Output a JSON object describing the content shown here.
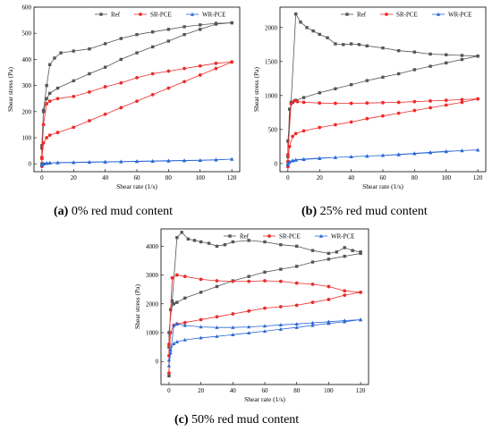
{
  "colors": {
    "ref": "#555555",
    "sr": "#ef2b2b",
    "wr": "#2a68d6"
  },
  "panels": [
    {
      "caption_letter": "(a)",
      "caption_text": "0% red mud content",
      "legend": [
        "Ref",
        "SR-PCE",
        "WR-PCE"
      ],
      "chart_data": {
        "type": "line",
        "xlabel": "Shear rate (1/s)",
        "ylabel": "Shear stress (Pa)",
        "xlim": [
          -5,
          125
        ],
        "ylim": [
          -30,
          600
        ],
        "xticks": [
          0,
          20,
          40,
          60,
          80,
          100,
          120
        ],
        "yticks": [
          0,
          100,
          200,
          300,
          400,
          500,
          600
        ],
        "series": [
          {
            "name": "Ref",
            "marker": "square",
            "x": [
              0,
              0,
              1,
              3,
              5,
              8,
              12,
              20,
              30,
              40,
              50,
              60,
              70,
              80,
              90,
              100,
              110,
              120,
              120,
              110,
              100,
              90,
              80,
              70,
              60,
              50,
              40,
              30,
              20,
              10,
              5,
              3,
              1,
              0
            ],
            "y": [
              0,
              70,
              205,
              300,
              380,
              405,
              425,
              432,
              440,
              460,
              480,
              495,
              505,
              515,
              525,
              532,
              538,
              540,
              540,
              535,
              515,
              495,
              470,
              448,
              425,
              400,
              370,
              345,
              318,
              290,
              270,
              250,
              200,
              60
            ]
          },
          {
            "name": "SR-PCE",
            "marker": "circle",
            "x": [
              0,
              0,
              1,
              3,
              5,
              10,
              20,
              30,
              40,
              50,
              60,
              70,
              80,
              90,
              100,
              110,
              120,
              120,
              110,
              100,
              90,
              80,
              70,
              60,
              50,
              40,
              30,
              20,
              10,
              5,
              3,
              1,
              0
            ],
            "y": [
              -10,
              25,
              150,
              230,
              240,
              250,
              258,
              275,
              295,
              310,
              330,
              345,
              355,
              365,
              375,
              385,
              390,
              390,
              365,
              340,
              315,
              290,
              265,
              240,
              215,
              190,
              165,
              140,
              120,
              110,
              100,
              80,
              20
            ]
          },
          {
            "name": "WR-PCE",
            "marker": "triangle",
            "x": [
              0,
              1,
              3,
              5,
              10,
              20,
              30,
              40,
              50,
              60,
              70,
              80,
              90,
              100,
              110,
              120,
              120,
              110,
              100,
              90,
              80,
              70,
              60,
              50,
              40,
              30,
              20,
              10,
              5,
              3,
              1,
              0
            ],
            "y": [
              -5,
              0,
              2,
              3,
              4,
              5,
              6,
              7,
              8,
              9,
              10,
              11,
              12,
              13,
              15,
              18,
              18,
              16,
              14,
              13,
              12,
              11,
              10,
              9,
              8,
              7,
              6,
              5,
              4,
              3,
              2,
              -3
            ]
          }
        ]
      }
    },
    {
      "caption_letter": "(b)",
      "caption_text": "25% red mud content",
      "legend": [
        "Ref",
        "SR-PCE",
        "WR-PCE"
      ],
      "chart_data": {
        "type": "line",
        "xlabel": "Shear rate (1/s)",
        "ylabel": "Shear stress (Pa)",
        "xlim": [
          -5,
          125
        ],
        "ylim": [
          -120,
          2300
        ],
        "xticks": [
          0,
          20,
          40,
          60,
          80,
          100,
          120
        ],
        "yticks": [
          0,
          500,
          1000,
          1500,
          2000
        ],
        "series": [
          {
            "name": "Ref",
            "marker": "square",
            "x": [
              0,
              0,
              2,
              5,
              8,
              12,
              16,
              20,
              25,
              30,
              35,
              40,
              45,
              50,
              60,
              70,
              80,
              90,
              100,
              110,
              120,
              120,
              110,
              100,
              90,
              80,
              70,
              60,
              50,
              40,
              30,
              20,
              10,
              5,
              3,
              1,
              0
            ],
            "y": [
              -20,
              330,
              900,
              2200,
              2080,
              2000,
              1950,
              1900,
              1850,
              1760,
              1750,
              1760,
              1750,
              1730,
              1700,
              1660,
              1640,
              1610,
              1600,
              1590,
              1580,
              1580,
              1530,
              1480,
              1430,
              1380,
              1320,
              1270,
              1220,
              1160,
              1100,
              1040,
              970,
              930,
              900,
              800,
              100
            ]
          },
          {
            "name": "SR-PCE",
            "marker": "circle",
            "x": [
              0,
              0,
              2,
              4,
              6,
              10,
              20,
              30,
              40,
              50,
              60,
              70,
              80,
              90,
              100,
              110,
              120,
              120,
              110,
              100,
              90,
              80,
              70,
              60,
              50,
              40,
              30,
              20,
              10,
              5,
              3,
              1,
              0
            ],
            "y": [
              -50,
              130,
              880,
              920,
              910,
              900,
              890,
              885,
              885,
              890,
              895,
              900,
              910,
              920,
              930,
              940,
              950,
              950,
              900,
              860,
              820,
              780,
              740,
              700,
              660,
              610,
              570,
              530,
              480,
              440,
              400,
              250,
              30
            ]
          },
          {
            "name": "WR-PCE",
            "marker": "triangle",
            "x": [
              0,
              1,
              3,
              5,
              10,
              20,
              30,
              40,
              50,
              60,
              70,
              80,
              90,
              100,
              110,
              120,
              120,
              110,
              100,
              90,
              80,
              70,
              60,
              50,
              40,
              30,
              20,
              10,
              5,
              3,
              1,
              0
            ],
            "y": [
              -20,
              20,
              40,
              50,
              60,
              75,
              90,
              100,
              110,
              120,
              135,
              150,
              165,
              180,
              190,
              200,
              200,
              190,
              175,
              160,
              145,
              130,
              120,
              110,
              100,
              90,
              80,
              65,
              55,
              45,
              30,
              0
            ]
          }
        ]
      }
    },
    {
      "caption_letter": "(c)",
      "caption_text": "50% red mud content",
      "legend": [
        "Ref",
        "SR-PCE",
        "WR-PCE"
      ],
      "chart_data": {
        "type": "line",
        "xlabel": "Shear rate (1/s)",
        "ylabel": "Shear stress (Pa)",
        "xlim": [
          -5,
          125
        ],
        "ylim": [
          -800,
          4600
        ],
        "xticks": [
          0,
          20,
          40,
          60,
          80,
          100,
          120
        ],
        "yticks": [
          0,
          1000,
          2000,
          3000,
          4000
        ],
        "series": [
          {
            "name": "Ref",
            "marker": "square",
            "x": [
              0,
              0,
              2,
              5,
              8,
              12,
              16,
              20,
              25,
              30,
              35,
              40,
              50,
              60,
              70,
              80,
              90,
              100,
              105,
              110,
              115,
              120,
              120,
              110,
              100,
              90,
              80,
              70,
              60,
              50,
              40,
              30,
              20,
              10,
              5,
              3,
              1,
              0
            ],
            "y": [
              -500,
              1000,
              2100,
              4300,
              4480,
              4250,
              4200,
              4150,
              4100,
              4000,
              4050,
              4150,
              4200,
              4150,
              4050,
              4000,
              3850,
              3750,
              3800,
              3950,
              3850,
              3800,
              3750,
              3650,
              3550,
              3450,
              3300,
              3200,
              3100,
              2950,
              2800,
              2600,
              2400,
              2200,
              2050,
              2000,
              1800,
              500
            ]
          },
          {
            "name": "SR-PCE",
            "marker": "circle",
            "x": [
              0,
              0,
              2,
              5,
              10,
              20,
              30,
              40,
              50,
              60,
              70,
              80,
              90,
              100,
              110,
              120,
              120,
              110,
              100,
              90,
              80,
              70,
              60,
              50,
              40,
              30,
              20,
              10,
              5,
              3,
              1,
              0
            ],
            "y": [
              -400,
              600,
              2900,
              3000,
              2950,
              2850,
              2800,
              2780,
              2780,
              2800,
              2780,
              2720,
              2680,
              2600,
              2450,
              2400,
              2400,
              2300,
              2150,
              2050,
              1950,
              1900,
              1850,
              1750,
              1650,
              1550,
              1450,
              1350,
              1300,
              1250,
              1000,
              200
            ]
          },
          {
            "name": "WR-PCE",
            "marker": "triangle",
            "x": [
              0,
              1,
              3,
              5,
              10,
              20,
              30,
              40,
              50,
              60,
              70,
              80,
              90,
              100,
              110,
              120,
              120,
              110,
              100,
              90,
              80,
              70,
              60,
              50,
              40,
              30,
              20,
              10,
              5,
              3,
              1,
              0
            ],
            "y": [
              -150,
              300,
              1250,
              1300,
              1250,
              1200,
              1180,
              1180,
              1200,
              1230,
              1270,
              1300,
              1340,
              1380,
              1420,
              1450,
              1450,
              1380,
              1320,
              1250,
              1180,
              1120,
              1050,
              990,
              930,
              870,
              820,
              750,
              680,
              620,
              400,
              50
            ]
          }
        ]
      }
    }
  ]
}
